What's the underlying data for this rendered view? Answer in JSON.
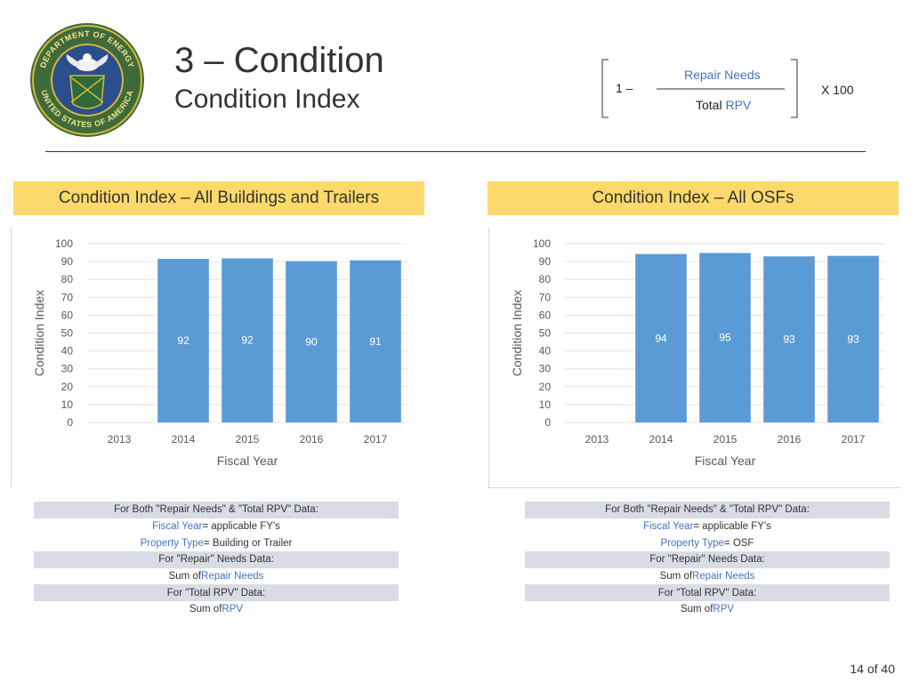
{
  "slide": {
    "title": "3 – Condition",
    "subtitle": "Condition Index",
    "page_number": "14 of 40"
  },
  "seal": {
    "text_top": "DEPARTMENT OF ENERGY",
    "text_bottom": "UNITED STATES OF AMERICA"
  },
  "formula": {
    "one": "1 –",
    "numerator": "Repair Needs",
    "denominator_prefix": "Total",
    "denominator_highlight": "RPV",
    "multiplier": "X  100"
  },
  "left_panel": {
    "banner": "Condition Index – All Buildings and Trailers",
    "rows": [
      {
        "parts": [
          {
            "t": "For Both \"Repair Needs\" & \"Total RPV\" Data:",
            "c": ""
          }
        ],
        "shade": true
      },
      {
        "parts": [
          {
            "t": "Fiscal Year",
            "c": "blue"
          },
          {
            "t": " = applicable FY's",
            "c": ""
          }
        ],
        "shade": false
      },
      {
        "parts": [
          {
            "t": "Property Type",
            "c": "blue"
          },
          {
            "t": " = Building or Trailer",
            "c": ""
          }
        ],
        "shade": false
      },
      {
        "parts": [
          {
            "t": "For \"Repair\" Needs Data:",
            "c": ""
          }
        ],
        "shade": true
      },
      {
        "parts": [
          {
            "t": "Sum of ",
            "c": ""
          },
          {
            "t": "Repair Needs",
            "c": "blue"
          }
        ],
        "shade": false
      },
      {
        "parts": [
          {
            "t": "For \"Total RPV\" Data:",
            "c": ""
          }
        ],
        "shade": true
      },
      {
        "parts": [
          {
            "t": "Sum of ",
            "c": ""
          },
          {
            "t": "RPV",
            "c": "blue"
          }
        ],
        "shade": false
      }
    ]
  },
  "right_panel": {
    "banner": "Condition Index – All OSFs",
    "rows": [
      {
        "parts": [
          {
            "t": "For Both \"Repair Needs\" & \"Total RPV\" Data:",
            "c": ""
          }
        ],
        "shade": true
      },
      {
        "parts": [
          {
            "t": "Fiscal Year",
            "c": "blue"
          },
          {
            "t": " = applicable FY's",
            "c": ""
          }
        ],
        "shade": false
      },
      {
        "parts": [
          {
            "t": "Property Type",
            "c": "blue"
          },
          {
            "t": " = OSF",
            "c": ""
          }
        ],
        "shade": false
      },
      {
        "parts": [
          {
            "t": "For \"Repair\" Needs Data:",
            "c": ""
          }
        ],
        "shade": true
      },
      {
        "parts": [
          {
            "t": "Sum of ",
            "c": ""
          },
          {
            "t": "Repair Needs",
            "c": "blue"
          }
        ],
        "shade": false
      },
      {
        "parts": [
          {
            "t": "For \"Total RPV\" Data:",
            "c": ""
          }
        ],
        "shade": true
      },
      {
        "parts": [
          {
            "t": "Sum of ",
            "c": ""
          },
          {
            "t": "RPV",
            "c": "blue"
          }
        ],
        "shade": false
      }
    ]
  },
  "chart_data": [
    {
      "type": "bar",
      "xlabel": "Fiscal Year",
      "ylabel": "Condition Index",
      "categories": [
        "2013",
        "2014",
        "2015",
        "2016",
        "2017"
      ],
      "values": [
        null,
        91.5,
        91.8,
        90.2,
        90.7
      ],
      "data_labels": [
        "",
        "92",
        "92",
        "90",
        "91"
      ],
      "yticks": [
        0,
        10,
        20,
        30,
        40,
        50,
        60,
        70,
        80,
        90,
        100
      ],
      "ylim": [
        0,
        100
      ],
      "grid": true,
      "bar_color": "#5b9bd5"
    },
    {
      "type": "bar",
      "xlabel": "Fiscal Year",
      "ylabel": "Condition Index",
      "categories": [
        "2013",
        "2014",
        "2015",
        "2016",
        "2017"
      ],
      "values": [
        null,
        94.2,
        94.8,
        92.9,
        93.2
      ],
      "data_labels": [
        "",
        "94",
        "95",
        "93",
        "93"
      ],
      "yticks": [
        0,
        10,
        20,
        30,
        40,
        50,
        60,
        70,
        80,
        90,
        100
      ],
      "ylim": [
        0,
        100
      ],
      "grid": true,
      "bar_color": "#5b9bd5"
    }
  ]
}
